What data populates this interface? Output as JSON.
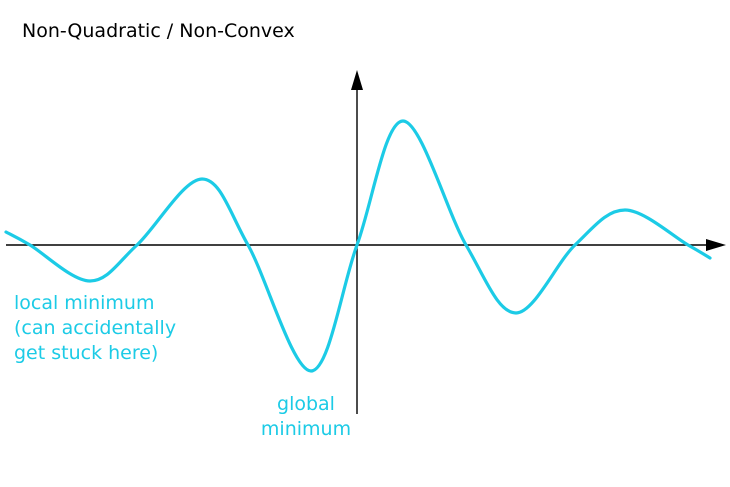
{
  "title": "Non-Quadratic / Non-Convex",
  "annotations": {
    "local_minimum": [
      "local minimum",
      "(can accidentally",
      "get stuck here)"
    ],
    "global_minimum": [
      "global",
      "minimum"
    ]
  },
  "colors": {
    "curve": "#1ccbe6",
    "label": "#1ccbe6",
    "axes": "#000000",
    "title": "#000000"
  },
  "icons": {
    "x_axis_arrow": "arrowhead-right",
    "y_axis_arrow": "arrowhead-up"
  }
}
